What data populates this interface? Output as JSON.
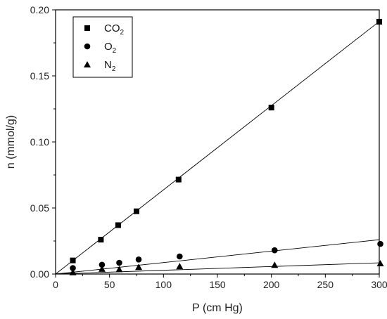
{
  "chart_data": {
    "type": "scatter",
    "title": "",
    "xlabel": "P (cm Hg)",
    "ylabel": "n (mmol/g)",
    "xlim": [
      0,
      300
    ],
    "ylim": [
      0,
      0.2
    ],
    "xticks": [
      0,
      50,
      100,
      150,
      200,
      250,
      300
    ],
    "yticks": [
      0.0,
      0.05,
      0.1,
      0.15,
      0.2
    ],
    "xtick_labels": [
      "0",
      "50",
      "100",
      "150",
      "200",
      "250",
      "300"
    ],
    "ytick_labels": [
      "0.00",
      "0.05",
      "0.10",
      "0.15",
      "0.20"
    ],
    "grid": false,
    "legend_position": "top-left",
    "series": [
      {
        "name": "CO",
        "subscript": "2",
        "marker": "square",
        "x": [
          16,
          42,
          58,
          75,
          114,
          200,
          300
        ],
        "y": [
          0.0103,
          0.026,
          0.037,
          0.0475,
          0.0715,
          0.126,
          0.191
        ],
        "fit": [
          [
            0,
            0
          ],
          [
            300,
            0.1912
          ]
        ]
      },
      {
        "name": "O",
        "subscript": "2",
        "marker": "circle",
        "x": [
          16,
          43,
          59,
          77,
          115,
          203,
          301
        ],
        "y": [
          0.0045,
          0.007,
          0.0085,
          0.011,
          0.0133,
          0.018,
          0.0228
        ],
        "fit": [
          [
            0,
            0
          ],
          [
            300,
            0.026
          ]
        ]
      },
      {
        "name": "N",
        "subscript": "2",
        "marker": "triangle",
        "x": [
          16,
          43,
          59,
          77,
          115,
          203,
          301
        ],
        "y": [
          0.0012,
          0.0038,
          0.0035,
          0.0052,
          0.0058,
          0.0068,
          0.008
        ],
        "fit": [
          [
            0,
            0
          ],
          [
            300,
            0.0085
          ]
        ]
      }
    ]
  }
}
